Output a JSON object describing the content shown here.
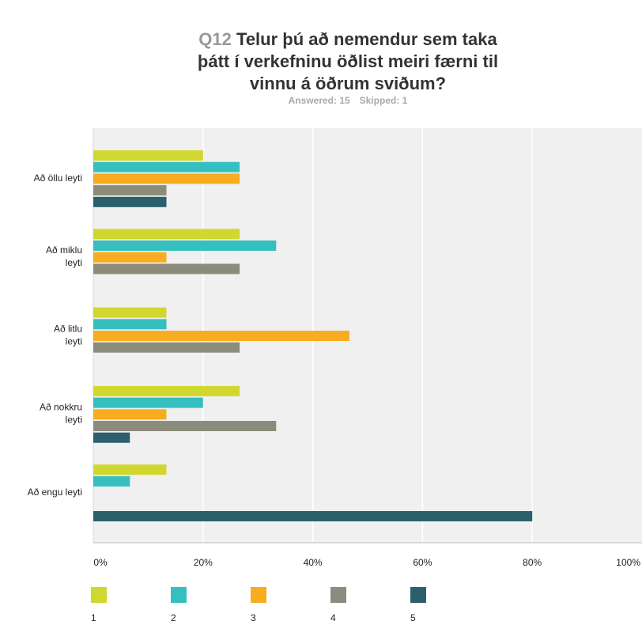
{
  "chart_data": {
    "type": "bar",
    "orientation": "horizontal",
    "question_number": "Q12",
    "title": "Telur þú að nemendur sem taka þátt í verkefninu öðlist meiri færni til vinnu á öðrum sviðum?",
    "answered": "Answered: 15",
    "skipped": "Skipped: 1",
    "categories": [
      "Að öllu leyti",
      "Að miklu leyti",
      "Að litlu leyti",
      "Að nokkru leyti",
      "Að engu leyti"
    ],
    "series": [
      {
        "name": "1",
        "color": "#d0d72e",
        "values": [
          20,
          26.67,
          13.33,
          26.67,
          13.33
        ]
      },
      {
        "name": "2",
        "color": "#35bfbf",
        "values": [
          26.67,
          33.33,
          13.33,
          20,
          6.67
        ]
      },
      {
        "name": "3",
        "color": "#f7ad1f",
        "values": [
          26.67,
          13.33,
          46.67,
          13.33,
          0
        ]
      },
      {
        "name": "4",
        "color": "#8b8c7c",
        "values": [
          13.33,
          26.67,
          26.67,
          33.33,
          0
        ]
      },
      {
        "name": "5",
        "color": "#2b5f6b",
        "values": [
          13.33,
          0,
          0,
          6.67,
          80
        ]
      }
    ],
    "xlim": [
      0,
      100
    ],
    "xticks": [
      {
        "value": 0,
        "label": "0%"
      },
      {
        "value": 20,
        "label": "20%"
      },
      {
        "value": 40,
        "label": "40%"
      },
      {
        "value": 60,
        "label": "60%"
      },
      {
        "value": 80,
        "label": "80%"
      },
      {
        "value": 100,
        "label": "100%"
      }
    ],
    "grid": true,
    "legend": "bottom"
  }
}
